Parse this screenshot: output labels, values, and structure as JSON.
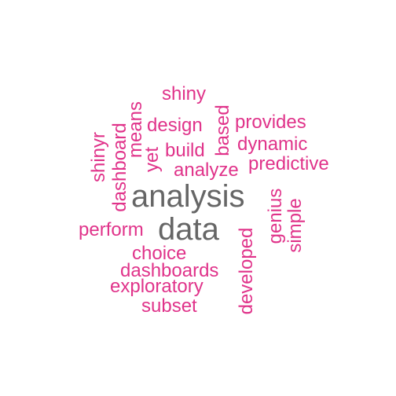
{
  "word_cloud": {
    "colors": {
      "primary": "#666666",
      "secondary": "#e0338a"
    },
    "words": [
      {
        "text": "analysis"
      },
      {
        "text": "data"
      },
      {
        "text": "shiny"
      },
      {
        "text": "design"
      },
      {
        "text": "provides"
      },
      {
        "text": "means"
      },
      {
        "text": "dashboard"
      },
      {
        "text": "based"
      },
      {
        "text": "build"
      },
      {
        "text": "dynamic"
      },
      {
        "text": "shinyr"
      },
      {
        "text": "yet"
      },
      {
        "text": "analyze"
      },
      {
        "text": "predictive"
      },
      {
        "text": "perform"
      },
      {
        "text": "genius"
      },
      {
        "text": "simple"
      },
      {
        "text": "choice"
      },
      {
        "text": "developed"
      },
      {
        "text": "dashboards"
      },
      {
        "text": "exploratory"
      },
      {
        "text": "subset"
      }
    ]
  }
}
